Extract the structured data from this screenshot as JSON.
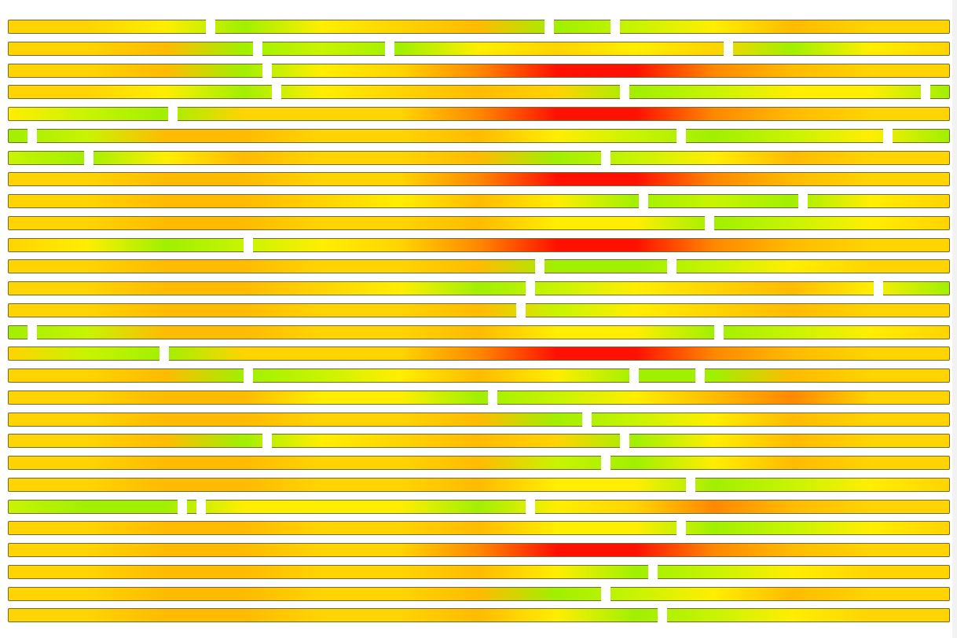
{
  "palette": {
    "A": "#ffd400",
    "B": "#ffbb00",
    "C": "#ffee00",
    "D": "#c8f400",
    "E": "#a0f000",
    "F": "#ff8800",
    "G": "#ff1000"
  },
  "rows": [
    {
      "stops": [
        "A",
        "A",
        "C",
        "E",
        "C",
        "A",
        "B",
        "E",
        "D",
        "C",
        "B",
        "A",
        "A"
      ],
      "gaps": [
        21,
        57,
        64
      ]
    },
    {
      "stops": [
        "A",
        "A",
        "B",
        "E",
        "D",
        "E",
        "C",
        "A",
        "C",
        "A",
        "E",
        "C",
        "A"
      ],
      "gaps": [
        26,
        40,
        76
      ]
    },
    {
      "stops": [
        "A",
        "A",
        "B",
        "E",
        "C",
        "A",
        "F",
        "G",
        "G",
        "F",
        "B",
        "A",
        "A"
      ],
      "gaps": [
        27
      ]
    },
    {
      "stops": [
        "A",
        "A",
        "C",
        "E",
        "C",
        "A",
        "B",
        "A",
        "E",
        "D",
        "C",
        "C",
        "E"
      ],
      "gaps": [
        28,
        65,
        97
      ]
    },
    {
      "stops": [
        "C",
        "D",
        "E",
        "A",
        "A",
        "A",
        "F",
        "G",
        "G",
        "F",
        "B",
        "A",
        "A"
      ],
      "gaps": [
        17
      ]
    },
    {
      "stops": [
        "E",
        "D",
        "B",
        "B",
        "A",
        "A",
        "B",
        "C",
        "D",
        "E",
        "D",
        "C",
        "E"
      ],
      "gaps": [
        2,
        71,
        93
      ]
    },
    {
      "stops": [
        "D",
        "E",
        "C",
        "B",
        "A",
        "A",
        "B",
        "E",
        "D",
        "C",
        "B",
        "A",
        "A"
      ],
      "gaps": [
        8,
        63
      ]
    },
    {
      "stops": [
        "A",
        "A",
        "B",
        "B",
        "A",
        "A",
        "F",
        "G",
        "G",
        "F",
        "B",
        "A",
        "A"
      ],
      "gaps": []
    },
    {
      "stops": [
        "A",
        "A",
        "B",
        "B",
        "A",
        "C",
        "B",
        "C",
        "E",
        "D",
        "E",
        "C",
        "A"
      ],
      "gaps": [
        67,
        84
      ]
    },
    {
      "stops": [
        "A",
        "A",
        "B",
        "B",
        "A",
        "A",
        "B",
        "C",
        "C",
        "E",
        "D",
        "C",
        "A"
      ],
      "gaps": [
        74
      ]
    },
    {
      "stops": [
        "A",
        "C",
        "E",
        "D",
        "C",
        "A",
        "F",
        "G",
        "G",
        "F",
        "B",
        "A",
        "A"
      ],
      "gaps": [
        25
      ]
    },
    {
      "stops": [
        "A",
        "A",
        "B",
        "B",
        "A",
        "A",
        "B",
        "E",
        "E",
        "D",
        "C",
        "A",
        "A"
      ],
      "gaps": [
        56,
        70
      ]
    },
    {
      "stops": [
        "A",
        "A",
        "B",
        "B",
        "A",
        "C",
        "E",
        "D",
        "C",
        "A",
        "B",
        "C",
        "E"
      ],
      "gaps": [
        55,
        92
      ]
    },
    {
      "stops": [
        "A",
        "A",
        "B",
        "B",
        "A",
        "A",
        "B",
        "D",
        "C",
        "A",
        "B",
        "A",
        "A"
      ],
      "gaps": [
        54
      ]
    },
    {
      "stops": [
        "E",
        "D",
        "B",
        "B",
        "A",
        "A",
        "B",
        "C",
        "C",
        "E",
        "D",
        "C",
        "A"
      ],
      "gaps": [
        2,
        75
      ]
    },
    {
      "stops": [
        "A",
        "D",
        "E",
        "A",
        "A",
        "A",
        "F",
        "G",
        "G",
        "F",
        "B",
        "A",
        "A"
      ],
      "gaps": [
        16
      ]
    },
    {
      "stops": [
        "A",
        "A",
        "B",
        "E",
        "D",
        "C",
        "B",
        "C",
        "E",
        "E",
        "B",
        "A",
        "A"
      ],
      "gaps": [
        25,
        66,
        73
      ]
    },
    {
      "stops": [
        "A",
        "A",
        "B",
        "B",
        "C",
        "C",
        "E",
        "D",
        "C",
        "B",
        "F",
        "A",
        "A"
      ],
      "gaps": [
        51
      ]
    },
    {
      "stops": [
        "A",
        "A",
        "B",
        "B",
        "A",
        "A",
        "B",
        "E",
        "D",
        "C",
        "B",
        "A",
        "A"
      ],
      "gaps": [
        61
      ]
    },
    {
      "stops": [
        "A",
        "A",
        "B",
        "E",
        "C",
        "A",
        "B",
        "A",
        "E",
        "C",
        "B",
        "A",
        "A"
      ],
      "gaps": [
        27,
        65
      ]
    },
    {
      "stops": [
        "A",
        "A",
        "B",
        "B",
        "A",
        "A",
        "B",
        "D",
        "E",
        "C",
        "B",
        "A",
        "A"
      ],
      "gaps": [
        63
      ]
    },
    {
      "stops": [
        "A",
        "A",
        "B",
        "B",
        "A",
        "A",
        "B",
        "C",
        "C",
        "E",
        "D",
        "C",
        "A"
      ],
      "gaps": [
        72
      ]
    },
    {
      "stops": [
        "D",
        "E",
        "E",
        "C",
        "C",
        "C",
        "E",
        "C",
        "A",
        "F",
        "B",
        "A",
        "A"
      ],
      "gaps": [
        18,
        20,
        55
      ]
    },
    {
      "stops": [
        "A",
        "A",
        "B",
        "B",
        "A",
        "A",
        "B",
        "C",
        "C",
        "E",
        "D",
        "C",
        "A"
      ],
      "gaps": [
        71
      ]
    },
    {
      "stops": [
        "A",
        "A",
        "B",
        "B",
        "A",
        "A",
        "F",
        "G",
        "G",
        "F",
        "B",
        "A",
        "A"
      ],
      "gaps": []
    },
    {
      "stops": [
        "A",
        "A",
        "B",
        "B",
        "A",
        "A",
        "B",
        "C",
        "E",
        "D",
        "C",
        "A",
        "A"
      ],
      "gaps": [
        68
      ]
    },
    {
      "stops": [
        "A",
        "A",
        "B",
        "B",
        "A",
        "A",
        "B",
        "E",
        "D",
        "C",
        "B",
        "A",
        "A"
      ],
      "gaps": [
        63
      ]
    },
    {
      "stops": [
        "A",
        "A",
        "B",
        "B",
        "A",
        "A",
        "B",
        "C",
        "E",
        "D",
        "C",
        "A",
        "A"
      ],
      "gaps": [
        69
      ]
    }
  ]
}
